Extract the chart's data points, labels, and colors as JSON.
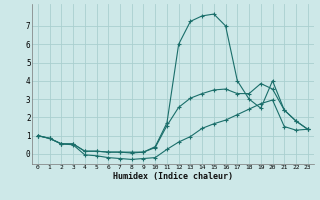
{
  "xlabel": "Humidex (Indice chaleur)",
  "background_color": "#cde8e8",
  "line_color": "#1a6e6a",
  "grid_color": "#aacfcf",
  "x_values": [
    0,
    1,
    2,
    3,
    4,
    5,
    6,
    7,
    8,
    9,
    10,
    11,
    12,
    13,
    14,
    15,
    16,
    17,
    18,
    19,
    20,
    21,
    22,
    23
  ],
  "line1": [
    1.0,
    0.85,
    0.55,
    0.55,
    0.15,
    0.15,
    0.1,
    0.1,
    0.1,
    0.1,
    0.4,
    1.7,
    6.0,
    7.25,
    7.55,
    7.65,
    7.0,
    4.0,
    3.0,
    2.5,
    4.0,
    2.4,
    1.8,
    1.35
  ],
  "line2": [
    1.0,
    0.85,
    0.55,
    0.55,
    0.15,
    0.15,
    0.1,
    0.1,
    0.05,
    0.1,
    0.35,
    1.55,
    2.55,
    3.05,
    3.3,
    3.5,
    3.55,
    3.3,
    3.3,
    3.85,
    3.55,
    2.4,
    1.8,
    1.35
  ],
  "line3": [
    1.0,
    0.85,
    0.55,
    0.5,
    -0.05,
    -0.1,
    -0.2,
    -0.25,
    -0.3,
    -0.25,
    -0.2,
    0.25,
    0.65,
    0.95,
    1.4,
    1.65,
    1.85,
    2.15,
    2.45,
    2.75,
    2.95,
    1.5,
    1.3,
    1.35
  ],
  "xlim": [
    -0.5,
    23.5
  ],
  "ylim": [
    -0.55,
    8.2
  ],
  "yticks": [
    0,
    1,
    2,
    3,
    4,
    5,
    6,
    7
  ],
  "xticks": [
    0,
    1,
    2,
    3,
    4,
    5,
    6,
    7,
    8,
    9,
    10,
    11,
    12,
    13,
    14,
    15,
    16,
    17,
    18,
    19,
    20,
    21,
    22,
    23
  ]
}
